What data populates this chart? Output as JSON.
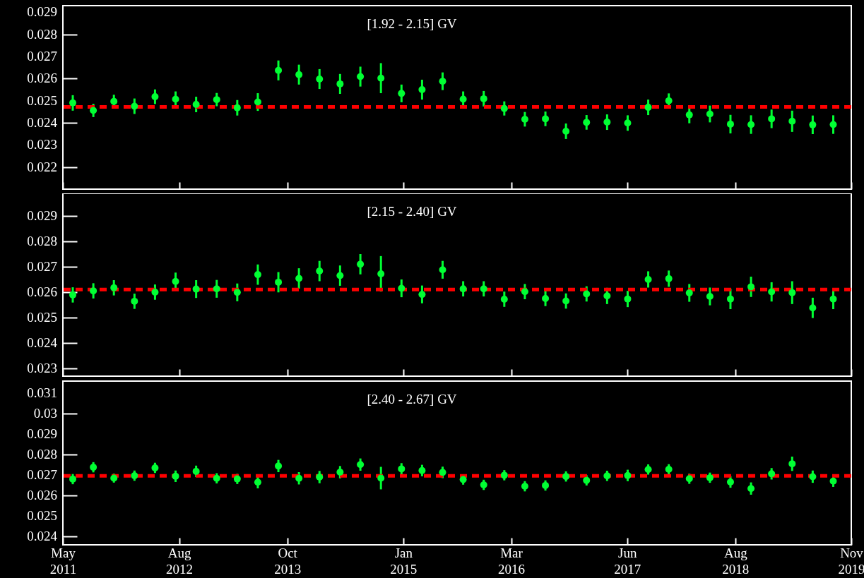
{
  "chart_data": [
    {
      "type": "scatter",
      "title": "[1.92 - 2.15] GV",
      "tick_labels": "y",
      "marker": "circle",
      "color": "#00ff33",
      "x": [
        "2011-06-09",
        "2011-08-29",
        "2011-11-18",
        "2012-02-07",
        "2012-04-28",
        "2012-07-18",
        "2012-10-07",
        "2012-12-27",
        "2013-03-18",
        "2013-06-07",
        "2013-08-27",
        "2013-11-16",
        "2014-02-05",
        "2014-04-27",
        "2014-07-16",
        "2014-10-05",
        "2014-12-25",
        "2015-03-16",
        "2015-06-05",
        "2015-08-25",
        "2015-11-14",
        "2016-02-03",
        "2016-04-24",
        "2016-07-14",
        "2016-10-03",
        "2016-12-23",
        "2017-03-14",
        "2017-06-03",
        "2017-08-23",
        "2017-11-12",
        "2018-02-01",
        "2018-04-23",
        "2018-07-13",
        "2018-10-02",
        "2018-12-22",
        "2019-03-13",
        "2019-06-02",
        "2019-08-22"
      ],
      "values": [
        0.0249,
        0.02456,
        0.02497,
        0.02475,
        0.02518,
        0.02507,
        0.02483,
        0.02505,
        0.02468,
        0.02494,
        0.02637,
        0.02618,
        0.02598,
        0.02576,
        0.02609,
        0.02602,
        0.02533,
        0.0255,
        0.02588,
        0.02507,
        0.02509,
        0.02465,
        0.02416,
        0.02418,
        0.02362,
        0.02402,
        0.02403,
        0.02399,
        0.0247,
        0.025,
        0.02436,
        0.0244,
        0.02394,
        0.02392,
        0.02418,
        0.02407,
        0.02391,
        0.02392
      ],
      "errors": [
        0.00035,
        0.0003,
        0.0003,
        0.00035,
        0.00033,
        0.00035,
        0.00035,
        0.0003,
        0.00035,
        0.0004,
        0.00045,
        0.00045,
        0.00045,
        0.00045,
        0.00045,
        0.00068,
        0.0004,
        0.00045,
        0.0004,
        0.00035,
        0.00035,
        0.00032,
        0.00033,
        0.00033,
        0.00035,
        0.00033,
        0.00035,
        0.00035,
        0.00035,
        0.00033,
        0.00038,
        0.00038,
        0.00042,
        0.00042,
        0.00042,
        0.00048,
        0.00042,
        0.00042
      ],
      "xlim": [
        "2011-05-01",
        "2019-11-01"
      ],
      "xticks": [
        {
          "value": "2011-05-01",
          "label": null
        },
        {
          "value": "2012-08-01",
          "label": null
        },
        {
          "value": "2013-10-01",
          "label": null
        },
        {
          "value": "2015-01-01",
          "label": null
        },
        {
          "value": "2016-03-01",
          "label": null
        },
        {
          "value": "2017-06-01",
          "label": null
        },
        {
          "value": "2018-08-01",
          "label": null
        },
        {
          "value": "2019-11-01",
          "label": null
        }
      ],
      "ylim": [
        0.021,
        0.0293
      ],
      "yticks": [
        0.022,
        0.023,
        0.024,
        0.025,
        0.026,
        0.027,
        0.028,
        0.029
      ],
      "ref_lines": [
        {
          "axis": "y",
          "value": 0.02472,
          "color": "#ff0000",
          "line_style": "dashed"
        }
      ]
    },
    {
      "type": "scatter",
      "title": "[2.15 - 2.40] GV",
      "tick_labels": "y",
      "marker": "circle",
      "color": "#00ff33",
      "x": [
        "2011-06-09",
        "2011-08-29",
        "2011-11-18",
        "2012-02-07",
        "2012-04-28",
        "2012-07-18",
        "2012-10-07",
        "2012-12-27",
        "2013-03-18",
        "2013-06-07",
        "2013-08-27",
        "2013-11-16",
        "2014-02-05",
        "2014-04-27",
        "2014-07-16",
        "2014-10-05",
        "2014-12-25",
        "2015-03-16",
        "2015-06-05",
        "2015-08-25",
        "2015-11-14",
        "2016-02-03",
        "2016-04-24",
        "2016-07-14",
        "2016-10-03",
        "2016-12-23",
        "2017-03-14",
        "2017-06-03",
        "2017-08-23",
        "2017-11-12",
        "2018-02-01",
        "2018-04-23",
        "2018-07-13",
        "2018-10-02",
        "2018-12-22",
        "2019-03-13",
        "2019-06-02",
        "2019-08-22"
      ],
      "values": [
        0.0259,
        0.02606,
        0.02618,
        0.02565,
        0.02601,
        0.02643,
        0.02613,
        0.02614,
        0.026,
        0.0267,
        0.0264,
        0.02655,
        0.02684,
        0.02666,
        0.02711,
        0.02673,
        0.02616,
        0.02592,
        0.02689,
        0.02614,
        0.02614,
        0.02573,
        0.02603,
        0.02576,
        0.02566,
        0.02594,
        0.02586,
        0.02574,
        0.02651,
        0.02654,
        0.02598,
        0.02584,
        0.02574,
        0.02622,
        0.02602,
        0.02599,
        0.02539,
        0.02574
      ],
      "errors": [
        0.0003,
        0.0003,
        0.0003,
        0.0003,
        0.0003,
        0.00035,
        0.00035,
        0.00035,
        0.00035,
        0.0004,
        0.0004,
        0.0004,
        0.0004,
        0.0004,
        0.0004,
        0.0007,
        0.00035,
        0.00035,
        0.00035,
        0.0003,
        0.0003,
        0.0003,
        0.0003,
        0.0003,
        0.0003,
        0.0003,
        0.00032,
        0.00032,
        0.00032,
        0.00032,
        0.00035,
        0.00035,
        0.0004,
        0.0004,
        0.00038,
        0.00045,
        0.0004,
        0.0004
      ],
      "xlim": [
        "2011-05-01",
        "2019-11-01"
      ],
      "xticks": [
        {
          "value": "2011-05-01",
          "label": null
        },
        {
          "value": "2012-08-01",
          "label": null
        },
        {
          "value": "2013-10-01",
          "label": null
        },
        {
          "value": "2015-01-01",
          "label": null
        },
        {
          "value": "2016-03-01",
          "label": null
        },
        {
          "value": "2017-06-01",
          "label": null
        },
        {
          "value": "2018-08-01",
          "label": null
        },
        {
          "value": "2019-11-01",
          "label": null
        }
      ],
      "ylim": [
        0.0227,
        0.0299
      ],
      "yticks": [
        0.023,
        0.024,
        0.025,
        0.026,
        0.027,
        0.028,
        0.029
      ],
      "ref_lines": [
        {
          "axis": "y",
          "value": 0.02611,
          "color": "#ff0000",
          "line_style": "dashed"
        }
      ]
    },
    {
      "type": "scatter",
      "title": "[2.40 - 2.67] GV",
      "marker": "circle",
      "color": "#00ff33",
      "x": [
        "2011-06-09",
        "2011-08-29",
        "2011-11-18",
        "2012-02-07",
        "2012-04-28",
        "2012-07-18",
        "2012-10-07",
        "2012-12-27",
        "2013-03-18",
        "2013-06-07",
        "2013-08-27",
        "2013-11-16",
        "2014-02-05",
        "2014-04-27",
        "2014-07-16",
        "2014-10-05",
        "2014-12-25",
        "2015-03-16",
        "2015-06-05",
        "2015-08-25",
        "2015-11-14",
        "2016-02-03",
        "2016-04-24",
        "2016-07-14",
        "2016-10-03",
        "2016-12-23",
        "2017-03-14",
        "2017-06-03",
        "2017-08-23",
        "2017-11-12",
        "2018-02-01",
        "2018-04-23",
        "2018-07-13",
        "2018-10-02",
        "2018-12-22",
        "2019-03-13",
        "2019-06-02",
        "2019-08-22"
      ],
      "values": [
        0.02681,
        0.02739,
        0.02686,
        0.02698,
        0.02736,
        0.02695,
        0.02719,
        0.02685,
        0.02682,
        0.02666,
        0.02745,
        0.02685,
        0.02691,
        0.02715,
        0.02752,
        0.02686,
        0.02731,
        0.02723,
        0.02714,
        0.02679,
        0.02653,
        0.027,
        0.02646,
        0.0265,
        0.02694,
        0.02675,
        0.02697,
        0.02699,
        0.02728,
        0.02729,
        0.02683,
        0.02688,
        0.02667,
        0.02635,
        0.02707,
        0.02756,
        0.02693,
        0.02671
      ],
      "errors": [
        0.00025,
        0.00025,
        0.00022,
        0.00025,
        0.00025,
        0.00028,
        0.00028,
        0.00025,
        0.00025,
        0.0003,
        0.0003,
        0.0003,
        0.0003,
        0.0003,
        0.0003,
        0.00055,
        0.00028,
        0.00028,
        0.00028,
        0.00025,
        0.00025,
        0.00025,
        0.00025,
        0.00025,
        0.00025,
        0.00025,
        0.00025,
        0.00028,
        0.00025,
        0.00025,
        0.00025,
        0.00025,
        0.00028,
        0.0003,
        0.00028,
        0.00035,
        0.0003,
        0.00028
      ],
      "xlim": [
        "2011-05-01",
        "2019-11-01"
      ],
      "xticks": [
        {
          "value": "2011-05-01",
          "label": "May 2011"
        },
        {
          "value": "2012-08-01",
          "label": "Aug 2012"
        },
        {
          "value": "2013-10-01",
          "label": "Oct 2013"
        },
        {
          "value": "2015-01-01",
          "label": "Jan 2015"
        },
        {
          "value": "2016-03-01",
          "label": "Mar 2016"
        },
        {
          "value": "2017-06-01",
          "label": "Jun 2017"
        },
        {
          "value": "2018-08-01",
          "label": "Aug 2018"
        },
        {
          "value": "2019-11-01",
          "label": "Nov 2019"
        }
      ],
      "ylim": [
        0.0236,
        0.0316
      ],
      "yticks": [
        0.024,
        0.025,
        0.026,
        0.027,
        0.028,
        0.029,
        0.03,
        0.031
      ],
      "ref_lines": [
        {
          "axis": "y",
          "value": 0.02697,
          "color": "#ff0000",
          "line_style": "dashed"
        }
      ]
    }
  ]
}
